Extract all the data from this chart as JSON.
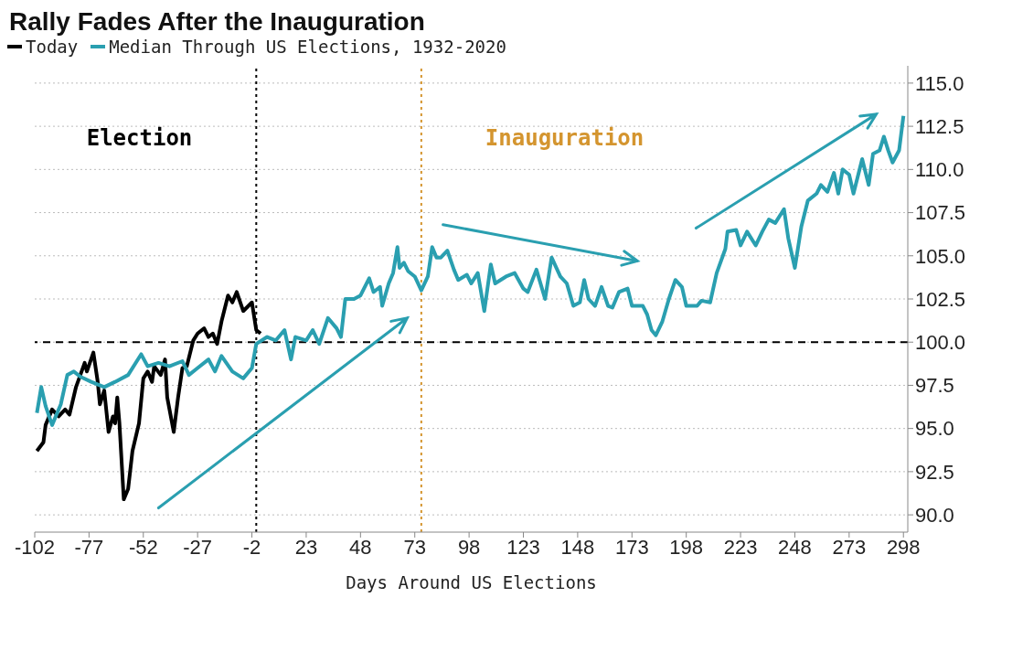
{
  "chart_data": {
    "type": "line",
    "title": "Rally Fades After the Inauguration",
    "xlabel": "Days Around US Elections",
    "legend": "top left",
    "grid": "y",
    "marker": "none",
    "line_style": "solid",
    "xlim": [
      -102,
      300
    ],
    "xticks": [
      -102,
      -77,
      -52,
      -27,
      -2,
      23,
      48,
      73,
      98,
      123,
      148,
      173,
      198,
      223,
      248,
      273,
      298
    ],
    "ylim": [
      89,
      116
    ],
    "yticks": [
      {
        "value": 90,
        "label": "90.0"
      },
      {
        "value": 92.5,
        "label": "92.5"
      },
      {
        "value": 95,
        "label": "95.0"
      },
      {
        "value": 97.5,
        "label": "97.5"
      },
      {
        "value": 100,
        "label": "100.0"
      },
      {
        "value": 102.5,
        "label": "102.5"
      },
      {
        "value": 105,
        "label": "105.0"
      },
      {
        "value": 107.5,
        "label": "107.5"
      },
      {
        "value": 110,
        "label": "110.0"
      },
      {
        "value": 112.5,
        "label": "112.5"
      },
      {
        "value": 115,
        "label": "115.0"
      }
    ],
    "ref_lines": [
      {
        "axis": "x",
        "value": 0,
        "label": "Election",
        "color": "#000000",
        "line_style": "dotted"
      },
      {
        "axis": "x",
        "value": 76,
        "label": "Inauguration",
        "color": "#d4952f",
        "line_style": "dotted"
      },
      {
        "axis": "y",
        "value": 100,
        "label": null,
        "color": "#000000",
        "line_style": "dashed"
      }
    ],
    "series": [
      {
        "name": "Today",
        "color": "#000000",
        "x": [
          -101,
          -98,
          -97,
          -94,
          -91,
          -88,
          -86,
          -83,
          -79,
          -78,
          -75,
          -73,
          -72,
          -70,
          -68,
          -66,
          -65,
          -64,
          -63,
          -61,
          -59,
          -57,
          -54,
          -52,
          -50,
          -48,
          -47,
          -44,
          -42,
          -41,
          -38,
          -36,
          -34,
          -32,
          -29,
          -27,
          -24,
          -22,
          -20,
          -18,
          -16,
          -13,
          -11,
          -9,
          -6,
          -2,
          0,
          2
        ],
        "values": [
          93.7,
          94.2,
          95.2,
          96.1,
          95.7,
          96.1,
          95.8,
          97.4,
          98.8,
          98.3,
          99.4,
          97.7,
          96.4,
          97.2,
          94.8,
          95.7,
          95.3,
          96.8,
          95.3,
          90.9,
          91.5,
          93.7,
          95.3,
          97.9,
          98.3,
          97.7,
          98.6,
          98.1,
          99.0,
          96.8,
          94.8,
          96.8,
          98.5,
          98.6,
          100.1,
          100.5,
          100.8,
          100.3,
          100.5,
          99.9,
          101.2,
          102.7,
          102.3,
          102.9,
          101.8,
          102.3,
          100.7,
          100.5
        ]
      },
      {
        "name": "Median Through US Elections, 1932-2020",
        "color": "#2a9fb0",
        "x": [
          -101,
          -99,
          -97,
          -94,
          -90,
          -87,
          -84,
          -81,
          -76,
          -70,
          -65,
          -59,
          -53,
          -50,
          -45,
          -40,
          -34,
          -31,
          -27,
          -22,
          -19,
          -16,
          -11,
          -6,
          -2,
          0,
          5,
          9,
          13,
          16,
          18,
          23,
          26,
          29,
          33,
          37,
          39,
          41,
          45,
          48,
          52,
          54,
          57,
          58,
          61,
          63,
          65,
          66,
          68,
          70,
          73,
          76,
          79,
          81,
          83,
          85,
          88,
          91,
          93,
          97,
          99,
          102,
          105,
          108,
          110,
          115,
          119,
          123,
          125,
          129,
          133,
          136,
          140,
          143,
          146,
          149,
          151,
          153,
          156,
          159,
          162,
          164,
          167,
          171,
          173,
          178,
          180,
          182,
          184,
          187,
          190,
          193,
          196,
          198,
          203,
          205,
          209,
          212,
          216,
          217,
          221,
          223,
          226,
          230,
          233,
          236,
          239,
          243,
          245,
          248,
          251,
          254,
          258,
          260,
          263,
          266,
          268,
          270,
          273,
          275,
          279,
          282,
          284,
          287,
          289,
          291,
          293,
          296,
          298
        ],
        "values": [
          95.9,
          97.4,
          96.3,
          95.2,
          96.4,
          98.1,
          98.3,
          98.0,
          97.7,
          97.4,
          97.7,
          98.1,
          99.3,
          98.6,
          98.8,
          98.6,
          98.9,
          98.1,
          98.5,
          99.0,
          98.3,
          99.2,
          98.3,
          97.9,
          98.5,
          99.9,
          100.3,
          100.1,
          100.7,
          99.0,
          100.3,
          100.1,
          100.7,
          99.9,
          101.4,
          100.8,
          100.3,
          102.5,
          102.5,
          102.7,
          103.7,
          102.9,
          103.2,
          102.1,
          103.4,
          104.0,
          105.5,
          104.3,
          104.6,
          104.1,
          103.8,
          103.0,
          103.8,
          105.5,
          104.9,
          104.9,
          105.3,
          104.2,
          103.6,
          103.9,
          103.4,
          104.0,
          101.8,
          104.5,
          103.4,
          103.8,
          104.0,
          103.1,
          102.9,
          104.2,
          102.5,
          104.9,
          103.8,
          103.4,
          102.1,
          102.3,
          103.6,
          102.5,
          102.1,
          103.2,
          102.1,
          102.0,
          102.9,
          103.1,
          102.1,
          102.1,
          101.6,
          100.7,
          100.4,
          101.2,
          102.5,
          103.6,
          103.2,
          102.1,
          102.1,
          102.4,
          102.3,
          104.0,
          105.4,
          106.4,
          106.5,
          105.6,
          106.4,
          105.6,
          106.4,
          107.1,
          106.9,
          107.7,
          106.0,
          104.3,
          106.7,
          108.2,
          108.6,
          109.1,
          108.7,
          109.8,
          108.6,
          110.0,
          109.7,
          108.6,
          110.6,
          109.1,
          110.9,
          111.1,
          111.9,
          111.1,
          110.4,
          111.1,
          113.1
        ]
      }
    ]
  }
}
